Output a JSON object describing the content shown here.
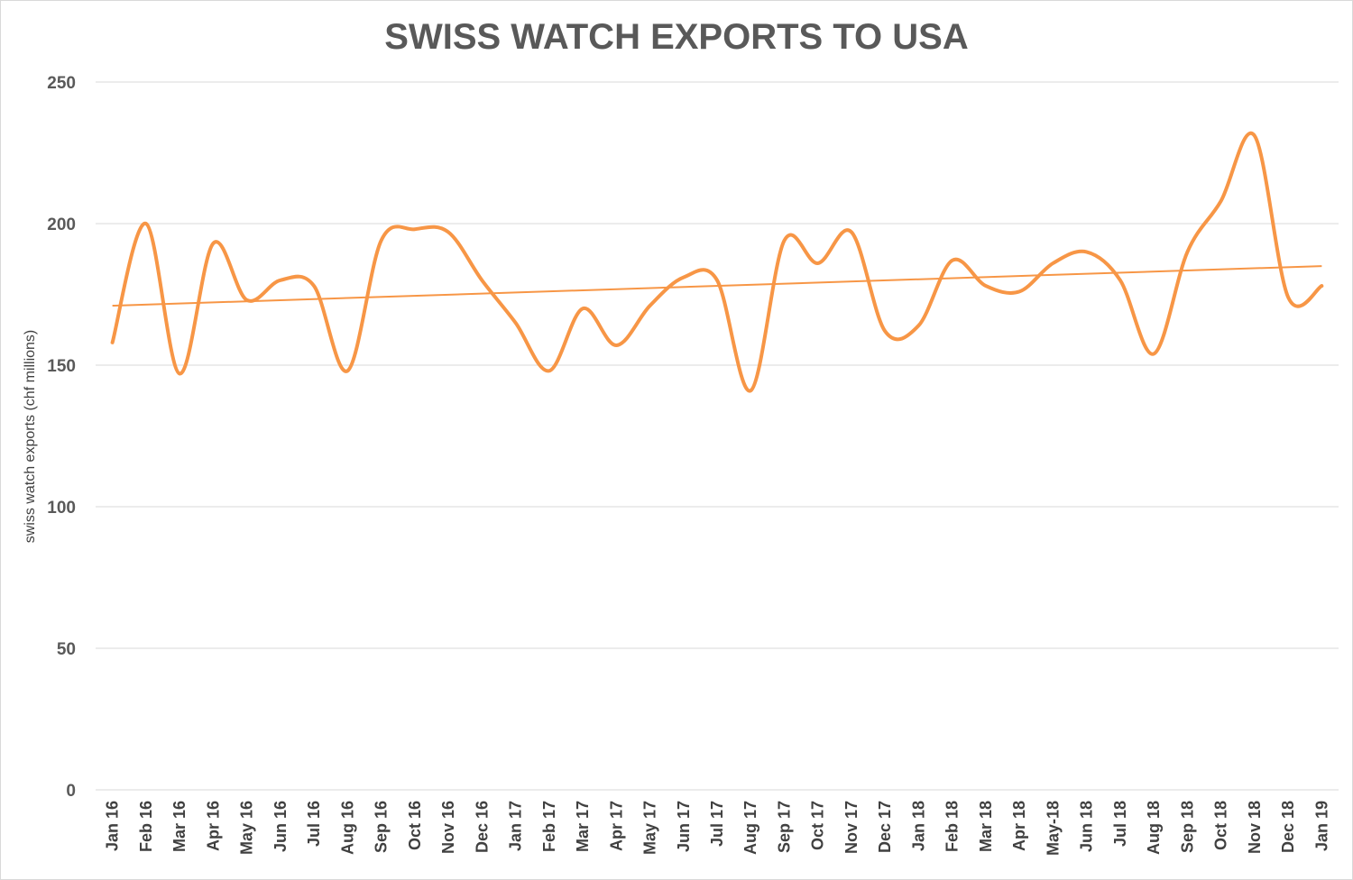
{
  "chart_data": {
    "type": "line",
    "title": "SWISS WATCH EXPORTS TO USA",
    "xlabel": "",
    "ylabel": "swiss watch exports (chf  millions)",
    "ylim": [
      0,
      250
    ],
    "yticks": [
      0,
      50,
      100,
      150,
      200,
      250
    ],
    "grid": true,
    "legend": "none",
    "categories": [
      "Jan 16",
      "Feb 16",
      "Mar 16",
      "Apr 16",
      "May 16",
      "Jun 16",
      "Jul 16",
      "Aug 16",
      "Sep 16",
      "Oct 16",
      "Nov 16",
      "Dec 16",
      "Jan 17",
      "Feb 17",
      "Mar 17",
      "Apr 17",
      "May 17",
      "Jun 17",
      "Jul 17",
      "Aug 17",
      "Sep 17",
      "Oct 17",
      "Nov 17",
      "Dec 17",
      "Jan 18",
      "Feb 18",
      "Mar 18",
      "Apr 18",
      "May-18",
      "Jun 18",
      "Jul 18",
      "Aug 18",
      "Sep 18",
      "Oct 18",
      "Nov 18",
      "Dec 18",
      "Jan 19"
    ],
    "series": [
      {
        "values": [
          158,
          200,
          147,
          193,
          173,
          180,
          178,
          148,
          194,
          198,
          197,
          180,
          165,
          148,
          170,
          157,
          171,
          181,
          180,
          141,
          194,
          186,
          197,
          162,
          164,
          187,
          178,
          176,
          186,
          190,
          180,
          154,
          190,
          208,
          231,
          174,
          178
        ]
      }
    ],
    "trendline": {
      "type": "linear",
      "start": 171,
      "end": 185
    },
    "colors": {
      "series": "#f79646",
      "trend": "#f79646",
      "grid": "#d9d9d9",
      "text": "#595959"
    }
  }
}
